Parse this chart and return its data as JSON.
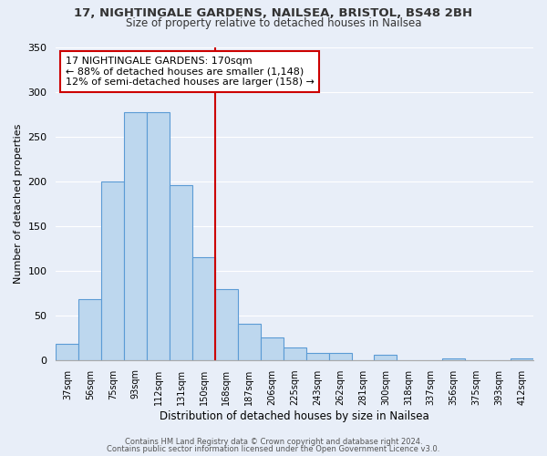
{
  "title": "17, NIGHTINGALE GARDENS, NAILSEA, BRISTOL, BS48 2BH",
  "subtitle": "Size of property relative to detached houses in Nailsea",
  "xlabel": "Distribution of detached houses by size in Nailsea",
  "ylabel": "Number of detached properties",
  "bar_labels": [
    "37sqm",
    "56sqm",
    "75sqm",
    "93sqm",
    "112sqm",
    "131sqm",
    "150sqm",
    "168sqm",
    "187sqm",
    "206sqm",
    "225sqm",
    "243sqm",
    "262sqm",
    "281sqm",
    "300sqm",
    "318sqm",
    "337sqm",
    "356sqm",
    "375sqm",
    "393sqm",
    "412sqm"
  ],
  "bar_values": [
    18,
    68,
    200,
    277,
    277,
    195,
    115,
    79,
    40,
    25,
    14,
    8,
    8,
    0,
    6,
    0,
    0,
    2,
    0,
    0,
    2
  ],
  "bar_color": "#bdd7ee",
  "bar_edge_color": "#5b9bd5",
  "vline_color": "#cc0000",
  "annotation_title": "17 NIGHTINGALE GARDENS: 170sqm",
  "annotation_line1": "← 88% of detached houses are smaller (1,148)",
  "annotation_line2": "12% of semi-detached houses are larger (158) →",
  "annotation_box_facecolor": "#ffffff",
  "annotation_box_edgecolor": "#cc0000",
  "footnote1": "Contains HM Land Registry data © Crown copyright and database right 2024.",
  "footnote2": "Contains public sector information licensed under the Open Government Licence v3.0.",
  "ylim": [
    0,
    350
  ],
  "background_color": "#e8eef8",
  "grid_color": "#ffffff",
  "title_fontsize": 9.5,
  "subtitle_fontsize": 8.5
}
